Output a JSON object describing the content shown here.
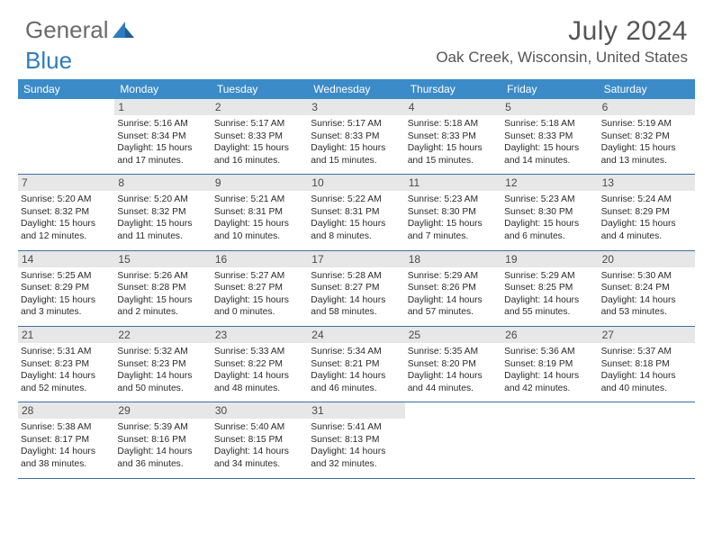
{
  "brand": {
    "part1": "General",
    "part2": "Blue"
  },
  "title": "July 2024",
  "location": "Oak Creek, Wisconsin, United States",
  "colors": {
    "header_bg": "#3b8bc8",
    "daynum_bg": "#e7e7e7",
    "rule": "#3b6fa0",
    "brand_blue": "#2e7cc0",
    "brand_gray": "#6a6a6a"
  },
  "daysOfWeek": [
    "Sunday",
    "Monday",
    "Tuesday",
    "Wednesday",
    "Thursday",
    "Friday",
    "Saturday"
  ],
  "weeks": [
    [
      {
        "n": "",
        "sunrise": "",
        "sunset": "",
        "daylight": ""
      },
      {
        "n": "1",
        "sunrise": "5:16 AM",
        "sunset": "8:34 PM",
        "daylight": "15 hours and 17 minutes."
      },
      {
        "n": "2",
        "sunrise": "5:17 AM",
        "sunset": "8:33 PM",
        "daylight": "15 hours and 16 minutes."
      },
      {
        "n": "3",
        "sunrise": "5:17 AM",
        "sunset": "8:33 PM",
        "daylight": "15 hours and 15 minutes."
      },
      {
        "n": "4",
        "sunrise": "5:18 AM",
        "sunset": "8:33 PM",
        "daylight": "15 hours and 15 minutes."
      },
      {
        "n": "5",
        "sunrise": "5:18 AM",
        "sunset": "8:33 PM",
        "daylight": "15 hours and 14 minutes."
      },
      {
        "n": "6",
        "sunrise": "5:19 AM",
        "sunset": "8:32 PM",
        "daylight": "15 hours and 13 minutes."
      }
    ],
    [
      {
        "n": "7",
        "sunrise": "5:20 AM",
        "sunset": "8:32 PM",
        "daylight": "15 hours and 12 minutes."
      },
      {
        "n": "8",
        "sunrise": "5:20 AM",
        "sunset": "8:32 PM",
        "daylight": "15 hours and 11 minutes."
      },
      {
        "n": "9",
        "sunrise": "5:21 AM",
        "sunset": "8:31 PM",
        "daylight": "15 hours and 10 minutes."
      },
      {
        "n": "10",
        "sunrise": "5:22 AM",
        "sunset": "8:31 PM",
        "daylight": "15 hours and 8 minutes."
      },
      {
        "n": "11",
        "sunrise": "5:23 AM",
        "sunset": "8:30 PM",
        "daylight": "15 hours and 7 minutes."
      },
      {
        "n": "12",
        "sunrise": "5:23 AM",
        "sunset": "8:30 PM",
        "daylight": "15 hours and 6 minutes."
      },
      {
        "n": "13",
        "sunrise": "5:24 AM",
        "sunset": "8:29 PM",
        "daylight": "15 hours and 4 minutes."
      }
    ],
    [
      {
        "n": "14",
        "sunrise": "5:25 AM",
        "sunset": "8:29 PM",
        "daylight": "15 hours and 3 minutes."
      },
      {
        "n": "15",
        "sunrise": "5:26 AM",
        "sunset": "8:28 PM",
        "daylight": "15 hours and 2 minutes."
      },
      {
        "n": "16",
        "sunrise": "5:27 AM",
        "sunset": "8:27 PM",
        "daylight": "15 hours and 0 minutes."
      },
      {
        "n": "17",
        "sunrise": "5:28 AM",
        "sunset": "8:27 PM",
        "daylight": "14 hours and 58 minutes."
      },
      {
        "n": "18",
        "sunrise": "5:29 AM",
        "sunset": "8:26 PM",
        "daylight": "14 hours and 57 minutes."
      },
      {
        "n": "19",
        "sunrise": "5:29 AM",
        "sunset": "8:25 PM",
        "daylight": "14 hours and 55 minutes."
      },
      {
        "n": "20",
        "sunrise": "5:30 AM",
        "sunset": "8:24 PM",
        "daylight": "14 hours and 53 minutes."
      }
    ],
    [
      {
        "n": "21",
        "sunrise": "5:31 AM",
        "sunset": "8:23 PM",
        "daylight": "14 hours and 52 minutes."
      },
      {
        "n": "22",
        "sunrise": "5:32 AM",
        "sunset": "8:23 PM",
        "daylight": "14 hours and 50 minutes."
      },
      {
        "n": "23",
        "sunrise": "5:33 AM",
        "sunset": "8:22 PM",
        "daylight": "14 hours and 48 minutes."
      },
      {
        "n": "24",
        "sunrise": "5:34 AM",
        "sunset": "8:21 PM",
        "daylight": "14 hours and 46 minutes."
      },
      {
        "n": "25",
        "sunrise": "5:35 AM",
        "sunset": "8:20 PM",
        "daylight": "14 hours and 44 minutes."
      },
      {
        "n": "26",
        "sunrise": "5:36 AM",
        "sunset": "8:19 PM",
        "daylight": "14 hours and 42 minutes."
      },
      {
        "n": "27",
        "sunrise": "5:37 AM",
        "sunset": "8:18 PM",
        "daylight": "14 hours and 40 minutes."
      }
    ],
    [
      {
        "n": "28",
        "sunrise": "5:38 AM",
        "sunset": "8:17 PM",
        "daylight": "14 hours and 38 minutes."
      },
      {
        "n": "29",
        "sunrise": "5:39 AM",
        "sunset": "8:16 PM",
        "daylight": "14 hours and 36 minutes."
      },
      {
        "n": "30",
        "sunrise": "5:40 AM",
        "sunset": "8:15 PM",
        "daylight": "14 hours and 34 minutes."
      },
      {
        "n": "31",
        "sunrise": "5:41 AM",
        "sunset": "8:13 PM",
        "daylight": "14 hours and 32 minutes."
      },
      {
        "n": "",
        "sunrise": "",
        "sunset": "",
        "daylight": ""
      },
      {
        "n": "",
        "sunrise": "",
        "sunset": "",
        "daylight": ""
      },
      {
        "n": "",
        "sunrise": "",
        "sunset": "",
        "daylight": ""
      }
    ]
  ],
  "labels": {
    "sunrise": "Sunrise:",
    "sunset": "Sunset:",
    "daylight": "Daylight:"
  }
}
